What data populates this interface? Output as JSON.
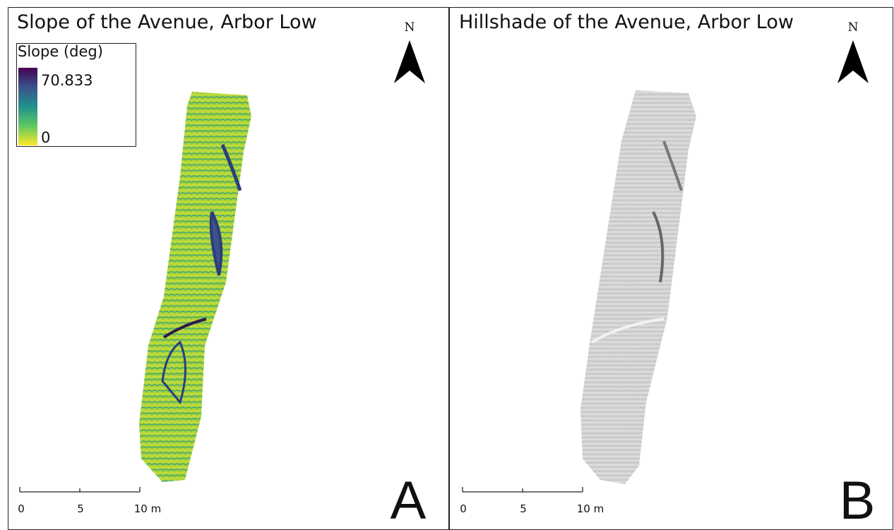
{
  "panels": [
    {
      "title": "Slope of the Avenue, Arbor Low",
      "north": "N",
      "scale_labels": [
        "0",
        "5",
        "10 m"
      ],
      "letter": "A",
      "legend": {
        "title": "Slope (deg)",
        "max": 70.833,
        "min": 0
      }
    },
    {
      "title": "Hillshade of the Avenue, Arbor Low",
      "north": "N",
      "scale_labels": [
        "0",
        "5",
        "10 m"
      ],
      "letter": "B"
    }
  ]
}
